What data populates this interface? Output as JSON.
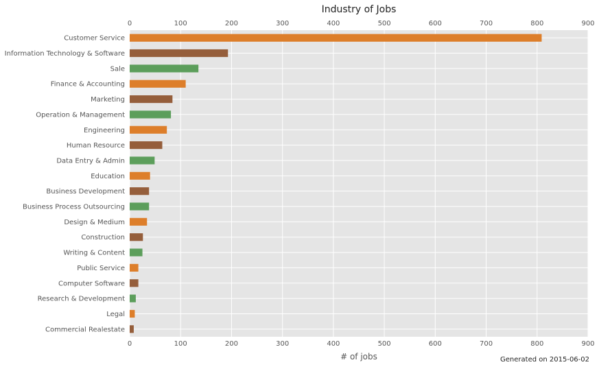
{
  "chart_data": {
    "type": "bar",
    "orientation": "horizontal",
    "title": "Industry of Jobs",
    "xlabel": "# of jobs",
    "ylabel": "",
    "xlim": [
      0,
      900
    ],
    "xticks": [
      0,
      100,
      200,
      300,
      400,
      500,
      600,
      700,
      800,
      900
    ],
    "grid": true,
    "categories": [
      "Customer Service",
      "Information Technology & Software",
      "Sale",
      "Finance & Accounting",
      "Marketing",
      "Operation & Management",
      "Engineering",
      "Human Resource",
      "Data Entry & Admin",
      "Education",
      "Business Development",
      "Business Process Outsourcing",
      "Design & Medium",
      "Construction",
      "Writing & Content",
      "Public Service",
      "Computer Software",
      "Research & Development",
      "Legal",
      "Commercial Realestate"
    ],
    "values": [
      809,
      193,
      135,
      110,
      84,
      81,
      73,
      64,
      49,
      40,
      38,
      38,
      34,
      26,
      25,
      17,
      17,
      12,
      10,
      8
    ],
    "bar_colors": [
      "#dd7e2a",
      "#955e3b",
      "#5c9e5b"
    ],
    "background_color": "#e5e5e5",
    "grid_color": "#ffffff",
    "footnote": "Generated on 2015-06-02"
  }
}
